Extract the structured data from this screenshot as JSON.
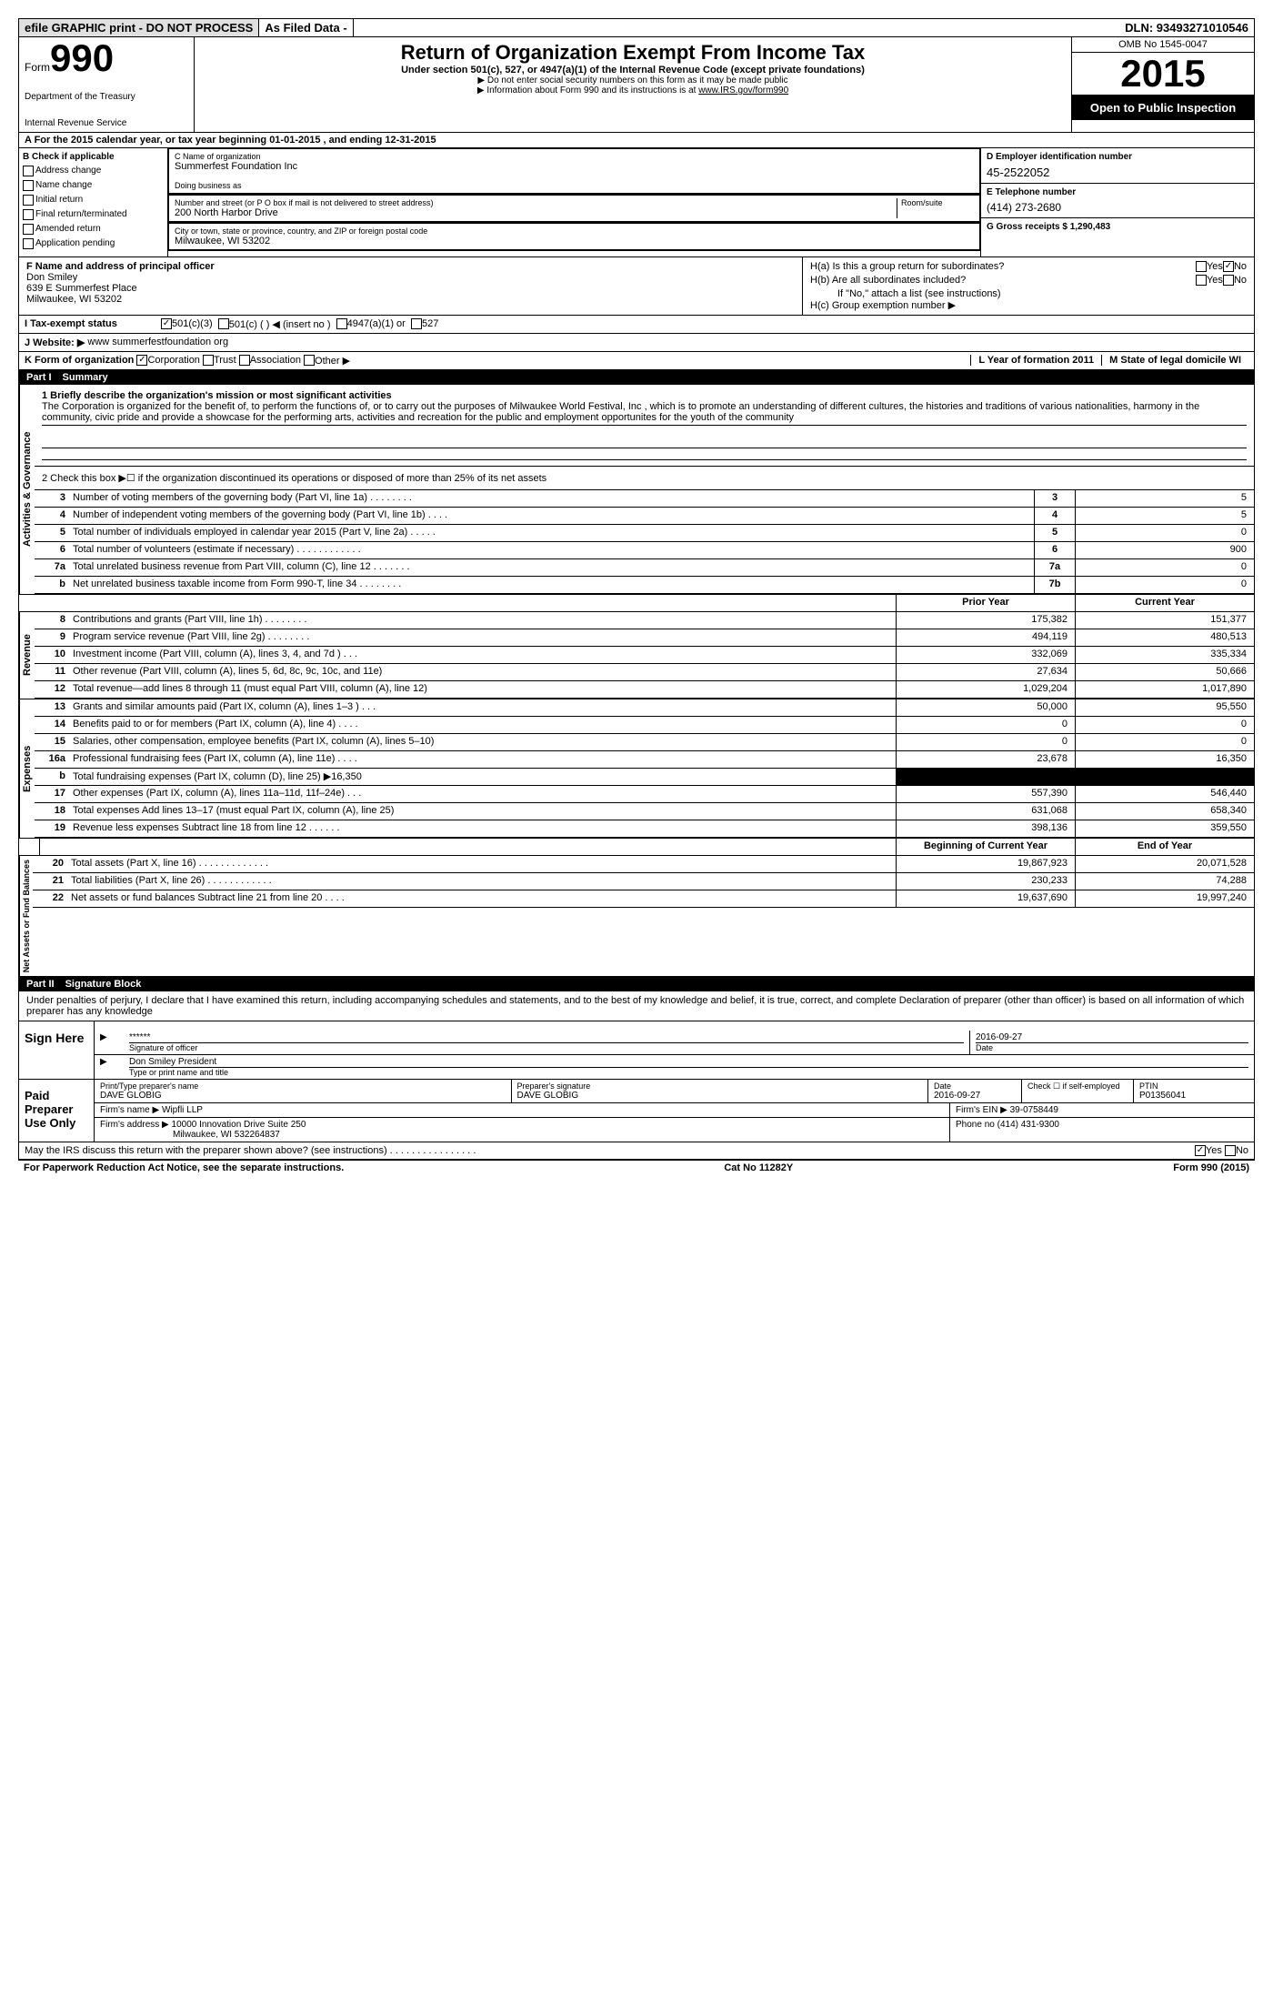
{
  "topbar": {
    "efile": "efile GRAPHIC print - DO NOT PROCESS",
    "asfiled": "As Filed Data -",
    "dln": "DLN: 93493271010546"
  },
  "header": {
    "form_label": "Form",
    "form_number": "990",
    "dept1": "Department of the Treasury",
    "dept2": "Internal Revenue Service",
    "title": "Return of Organization Exempt From Income Tax",
    "subtitle": "Under section 501(c), 527, or 4947(a)(1) of the Internal Revenue Code (except private foundations)",
    "note1": "▶ Do not enter social security numbers on this form as it may be made public",
    "note2": "▶ Information about Form 990 and its instructions is at ",
    "note2_link": "www.IRS.gov/form990",
    "omb": "OMB No 1545-0047",
    "year": "2015",
    "open_pub": "Open to Public Inspection"
  },
  "row_a": "A  For the 2015 calendar year, or tax year beginning 01-01-2015     , and ending 12-31-2015",
  "col_b": {
    "label": "B Check if applicable",
    "items": [
      "Address change",
      "Name change",
      "Initial return",
      "Final return/terminated",
      "Amended return",
      "Application pending"
    ]
  },
  "col_c": {
    "name_label": "C Name of organization",
    "name": "Summerfest Foundation Inc",
    "dba_label": "Doing business as",
    "dba": "",
    "addr_label": "Number and street (or P O  box if mail is not delivered to street address)",
    "room_label": "Room/suite",
    "addr": "200 North Harbor Drive",
    "city_label": "City or town, state or province, country, and ZIP or foreign postal code",
    "city": "Milwaukee, WI  53202"
  },
  "col_d": {
    "ein_label": "D Employer identification number",
    "ein": "45-2522052",
    "tel_label": "E Telephone number",
    "tel": "(414) 273-2680",
    "gross_label": "G Gross receipts $ 1,290,483"
  },
  "officer": {
    "label": "F  Name and address of principal officer",
    "name": "Don Smiley",
    "addr1": "639 E Summerfest Place",
    "addr2": "Milwaukee, WI  53202"
  },
  "h_section": {
    "ha": "H(a)  Is this a group return for subordinates?",
    "hb": "H(b)  Are all subordinates included?",
    "hb_note": "If \"No,\" attach a list  (see instructions)",
    "hc": "H(c)  Group exemption number ▶",
    "yes": "Yes",
    "no": "No"
  },
  "tax_status": {
    "label": "I  Tax-exempt status",
    "opt1": "501(c)(3)",
    "opt2": "501(c) (  ) ◀ (insert no )",
    "opt3": "4947(a)(1) or",
    "opt4": "527"
  },
  "website": {
    "label": "J  Website: ▶",
    "value": "www summerfestfoundation org"
  },
  "row_k": {
    "label": "K Form of organization",
    "corp": "Corporation",
    "trust": "Trust",
    "assoc": "Association",
    "other": "Other ▶",
    "l_label": "L Year of formation  2011",
    "m_label": "M State of legal domicile  WI"
  },
  "part1": {
    "header_num": "Part I",
    "header_title": "Summary",
    "line1_label": "1 Briefly describe the organization's mission or most significant activities",
    "mission": "The Corporation is organized for the benefit of, to perform the functions of, or to carry out the purposes of Milwaukee World Festival, Inc , which is to promote an understanding of different cultures, the histories and traditions of various nationalities, harmony in the community, civic pride and provide a showcase for the performing arts, activities and recreation for the public and employment opportunites for the youth of the community",
    "line2": "2  Check this box ▶☐ if the organization discontinued its operations or disposed of more than 25% of its net assets",
    "activities_label": "Activities & Governance",
    "revenue_label": "Revenue",
    "expenses_label": "Expenses",
    "netassets_label": "Net Assets or Fund Balances",
    "lines_top": [
      {
        "n": "3",
        "d": "Number of voting members of the governing body (Part VI, line 1a)  .    .    .    .    .    .    .    .",
        "bn": "3",
        "v": "5"
      },
      {
        "n": "4",
        "d": "Number of independent voting members of the governing body (Part VI, line 1b)   .    .    .    .",
        "bn": "4",
        "v": "5"
      },
      {
        "n": "5",
        "d": "Total number of individuals employed in calendar year 2015 (Part V, line 2a)   .    .    .    .    .",
        "bn": "5",
        "v": "0"
      },
      {
        "n": "6",
        "d": "Total number of volunteers (estimate if necessary)    .    .    .    .    .    .    .    .    .    .    .    .",
        "bn": "6",
        "v": "900"
      },
      {
        "n": "7a",
        "d": "Total unrelated business revenue from Part VIII, column (C), line 12   .    .    .    .    .    .    .",
        "bn": "7a",
        "v": "0"
      },
      {
        "n": "b",
        "d": "Net unrelated business taxable income from Form 990-T, line 34   .    .    .    .    .    .    .    .",
        "bn": "7b",
        "v": "0"
      }
    ],
    "prior_year": "Prior Year",
    "current_year": "Current Year",
    "rev_lines": [
      {
        "n": "8",
        "d": "Contributions and grants (Part VIII, line 1h)   .    .    .    .    .    .    .    .",
        "py": "175,382",
        "cy": "151,377"
      },
      {
        "n": "9",
        "d": "Program service revenue (Part VIII, line 2g)   .    .    .    .    .    .    .    .",
        "py": "494,119",
        "cy": "480,513"
      },
      {
        "n": "10",
        "d": "Investment income (Part VIII, column (A), lines 3, 4, and 7d )    .    .    .",
        "py": "332,069",
        "cy": "335,334"
      },
      {
        "n": "11",
        "d": "Other revenue (Part VIII, column (A), lines 5, 6d, 8c, 9c, 10c, and 11e)",
        "py": "27,634",
        "cy": "50,666"
      },
      {
        "n": "12",
        "d": "Total revenue—add lines 8 through 11 (must equal Part VIII, column (A), line 12)",
        "py": "1,029,204",
        "cy": "1,017,890"
      }
    ],
    "exp_lines": [
      {
        "n": "13",
        "d": "Grants and similar amounts paid (Part IX, column (A), lines 1–3 )   .    .    .",
        "py": "50,000",
        "cy": "95,550"
      },
      {
        "n": "14",
        "d": "Benefits paid to or for members (Part IX, column (A), line 4)   .    .    .    .",
        "py": "0",
        "cy": "0"
      },
      {
        "n": "15",
        "d": "Salaries, other compensation, employee benefits (Part IX, column (A), lines 5–10)",
        "py": "0",
        "cy": "0"
      },
      {
        "n": "16a",
        "d": "Professional fundraising fees (Part IX, column (A), line 11e)   .    .    .    .",
        "py": "23,678",
        "cy": "16,350"
      },
      {
        "n": "b",
        "d": "Total fundraising expenses (Part IX, column (D), line 25) ▶16,350",
        "py": "BLACKOUT",
        "cy": "BLACKOUT"
      },
      {
        "n": "17",
        "d": "Other expenses (Part IX, column (A), lines 11a–11d, 11f–24e)    .    .    .",
        "py": "557,390",
        "cy": "546,440"
      },
      {
        "n": "18",
        "d": "Total expenses  Add lines 13–17 (must equal Part IX, column (A), line 25)",
        "py": "631,068",
        "cy": "658,340"
      },
      {
        "n": "19",
        "d": "Revenue less expenses  Subtract line 18 from line 12   .    .    .    .    .    .",
        "py": "398,136",
        "cy": "359,550"
      }
    ],
    "net_hdr_py": "Beginning of Current Year",
    "net_hdr_cy": "End of Year",
    "net_lines": [
      {
        "n": "20",
        "d": "Total assets (Part X, line 16)   .    .    .    .    .    .    .    .    .    .    .    .    .",
        "py": "19,867,923",
        "cy": "20,071,528"
      },
      {
        "n": "21",
        "d": "Total liabilities (Part X, line 26)    .    .    .    .    .    .    .    .    .    .    .    .",
        "py": "230,233",
        "cy": "74,288"
      },
      {
        "n": "22",
        "d": "Net assets or fund balances  Subtract line 21 from line 20   .    .    .    .",
        "py": "19,637,690",
        "cy": "19,997,240"
      }
    ]
  },
  "part2": {
    "header_num": "Part II",
    "header_title": "Signature Block",
    "perjury": "Under penalties of perjury, I declare that I have examined this return, including accompanying schedules and statements, and to the best of my knowledge and belief, it is true, correct, and complete  Declaration of preparer (other than officer) is based on all information of which preparer has any knowledge",
    "sign_here": "Sign Here",
    "sig_stars": "******",
    "sig_label": "Signature of officer",
    "sig_date": "2016-09-27",
    "date_label": "Date",
    "officer_name": "Don Smiley President",
    "officer_label": "Type or print name and title",
    "paid_prep": "Paid Preparer Use Only",
    "prep_name_label": "Print/Type preparer's name",
    "prep_name": "DAVE GLOBIG",
    "prep_sig_label": "Preparer's signature",
    "prep_sig": "DAVE GLOBIG",
    "prep_date": "2016-09-27",
    "self_emp": "Check ☐ if self-employed",
    "ptin_label": "PTIN",
    "ptin": "P01356041",
    "firm_name_label": "Firm's name   ▶",
    "firm_name": "Wipfli LLP",
    "firm_ein_label": "Firm's EIN ▶",
    "firm_ein": "39-0758449",
    "firm_addr_label": "Firm's address ▶",
    "firm_addr": "10000 Innovation Drive Suite 250",
    "firm_city": "Milwaukee, WI  532264837",
    "phone_label": "Phone no",
    "phone": "(414) 431-9300",
    "discuss": "May the IRS discuss this return with the preparer shown above? (see instructions)   .    .    .    .    .    .    .    .    .    .    .    .    .    .    .    .",
    "discuss_yes": "Yes",
    "discuss_no": "No"
  },
  "footer": {
    "left": "For Paperwork Reduction Act Notice, see the separate instructions.",
    "mid": "Cat No 11282Y",
    "right": "Form 990 (2015)"
  }
}
